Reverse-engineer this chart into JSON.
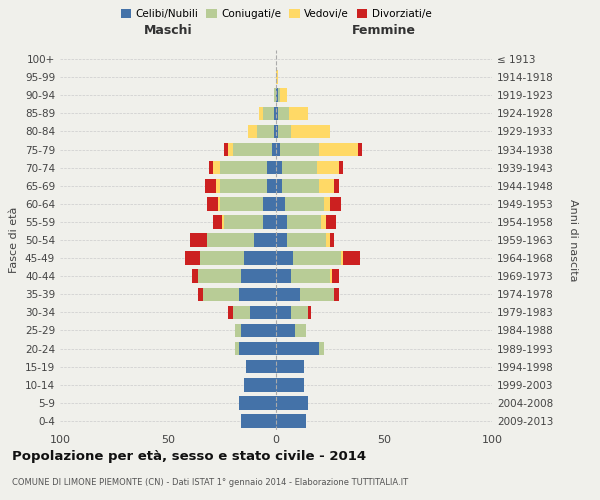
{
  "age_groups": [
    "0-4",
    "5-9",
    "10-14",
    "15-19",
    "20-24",
    "25-29",
    "30-34",
    "35-39",
    "40-44",
    "45-49",
    "50-54",
    "55-59",
    "60-64",
    "65-69",
    "70-74",
    "75-79",
    "80-84",
    "85-89",
    "90-94",
    "95-99",
    "100+"
  ],
  "birth_years": [
    "2009-2013",
    "2004-2008",
    "1999-2003",
    "1994-1998",
    "1989-1993",
    "1984-1988",
    "1979-1983",
    "1974-1978",
    "1969-1973",
    "1964-1968",
    "1959-1963",
    "1954-1958",
    "1949-1953",
    "1944-1948",
    "1939-1943",
    "1934-1938",
    "1929-1933",
    "1924-1928",
    "1919-1923",
    "1914-1918",
    "≤ 1913"
  ],
  "male": {
    "celibi": [
      16,
      17,
      15,
      14,
      17,
      16,
      12,
      17,
      16,
      15,
      10,
      6,
      6,
      4,
      4,
      2,
      1,
      1,
      0,
      0,
      0
    ],
    "coniugati": [
      0,
      0,
      0,
      0,
      2,
      3,
      8,
      17,
      20,
      20,
      22,
      18,
      20,
      22,
      22,
      18,
      8,
      5,
      1,
      0,
      0
    ],
    "vedovi": [
      0,
      0,
      0,
      0,
      0,
      0,
      0,
      0,
      0,
      0,
      0,
      1,
      1,
      2,
      3,
      2,
      4,
      2,
      0,
      0,
      0
    ],
    "divorziati": [
      0,
      0,
      0,
      0,
      0,
      0,
      2,
      2,
      3,
      7,
      8,
      4,
      5,
      5,
      2,
      2,
      0,
      0,
      0,
      0,
      0
    ]
  },
  "female": {
    "nubili": [
      14,
      15,
      13,
      13,
      20,
      9,
      7,
      11,
      7,
      8,
      5,
      5,
      4,
      3,
      3,
      2,
      1,
      1,
      1,
      0,
      0
    ],
    "coniugate": [
      0,
      0,
      0,
      0,
      2,
      5,
      8,
      16,
      18,
      22,
      18,
      16,
      18,
      17,
      16,
      18,
      6,
      5,
      1,
      0,
      0
    ],
    "vedove": [
      0,
      0,
      0,
      0,
      0,
      0,
      0,
      0,
      1,
      1,
      2,
      2,
      3,
      7,
      10,
      18,
      18,
      9,
      3,
      1,
      0
    ],
    "divorziate": [
      0,
      0,
      0,
      0,
      0,
      0,
      1,
      2,
      3,
      8,
      2,
      5,
      5,
      2,
      2,
      2,
      0,
      0,
      0,
      0,
      0
    ]
  },
  "colors": {
    "celibi": "#4472a8",
    "coniugati": "#b8cc96",
    "vedovi": "#ffd966",
    "divorziati": "#cc2020"
  },
  "title": "Popolazione per età, sesso e stato civile - 2014",
  "subtitle": "COMUNE DI LIMONE PIEMONTE (CN) - Dati ISTAT 1° gennaio 2014 - Elaborazione TUTTITALIA.IT",
  "xlabel_left": "Maschi",
  "xlabel_right": "Femmine",
  "ylabel_left": "Fasce di età",
  "ylabel_right": "Anni di nascita",
  "xlim": 100,
  "legend_labels": [
    "Celibi/Nubili",
    "Coniugati/e",
    "Vedovi/e",
    "Divorziati/e"
  ],
  "background_color": "#f0f0eb"
}
